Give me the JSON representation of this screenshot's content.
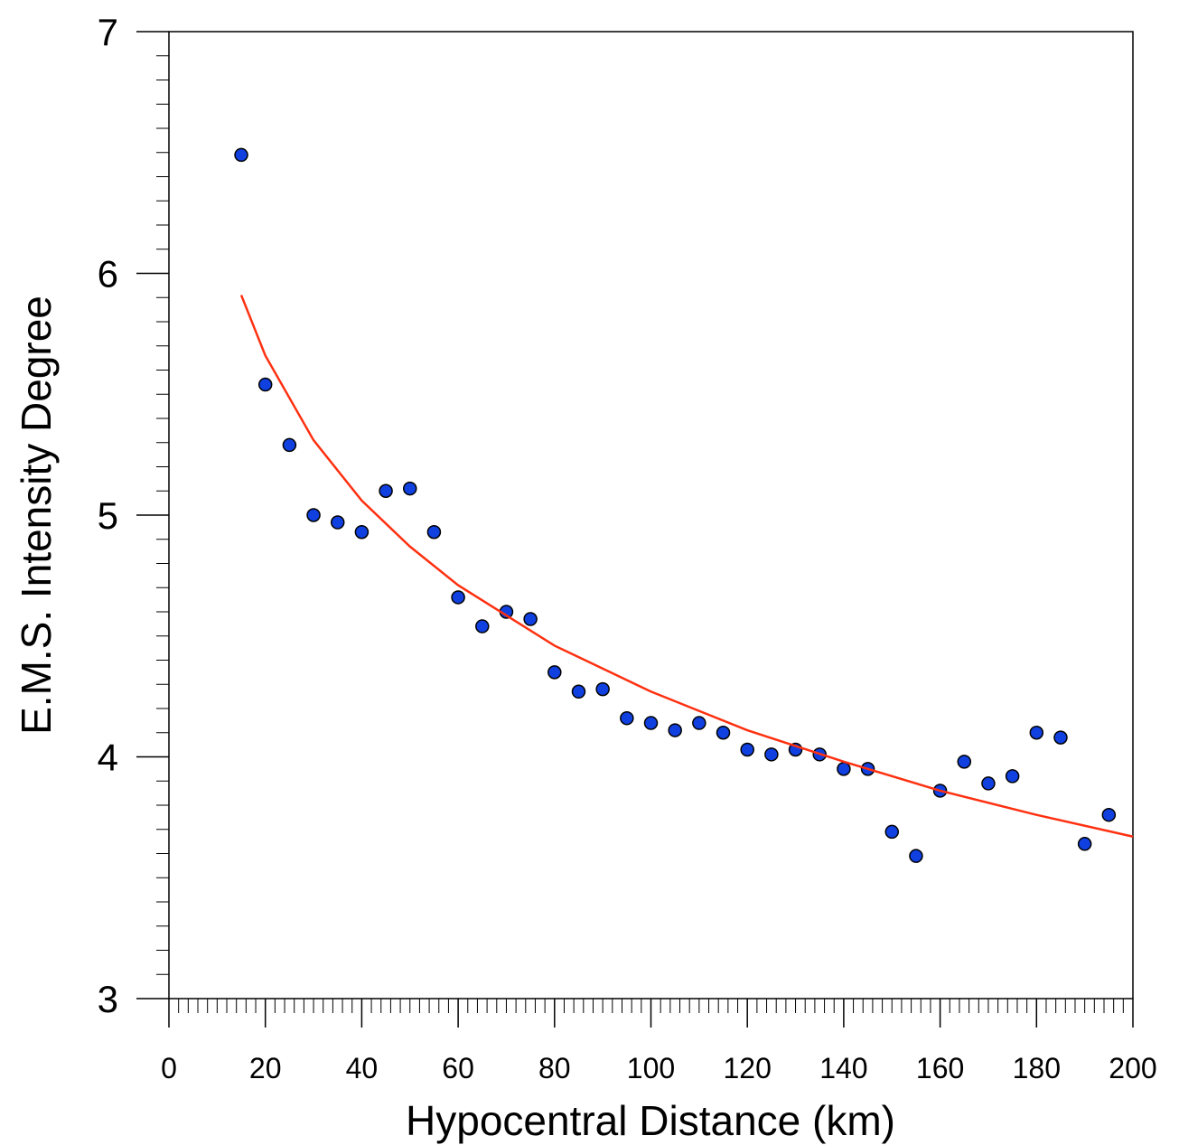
{
  "chart_data": {
    "type": "scatter",
    "x_label": "Hypocentral Distance (km)",
    "y_label": "E.M.S. Intensity Degree",
    "xlim": [
      0,
      200
    ],
    "xticks": [
      0,
      20,
      40,
      60,
      80,
      100,
      120,
      140,
      160,
      180,
      200
    ],
    "ylim": [
      3,
      7
    ],
    "yticks": [
      3,
      4,
      5,
      6,
      7
    ],
    "series": [
      {
        "type": "scatter",
        "color": "#1040e0",
        "x": [
          15,
          20,
          25,
          30,
          35,
          40,
          45,
          50,
          55,
          60,
          65,
          70,
          75,
          80,
          85,
          90,
          95,
          100,
          105,
          110,
          115,
          120,
          125,
          130,
          135,
          140,
          145,
          150,
          155,
          160,
          165,
          170,
          175,
          180,
          185,
          190,
          195
        ],
        "values": [
          6.49,
          5.54,
          5.29,
          5.0,
          4.97,
          4.93,
          5.1,
          5.11,
          4.93,
          4.66,
          4.54,
          4.6,
          4.57,
          4.35,
          4.27,
          4.28,
          4.16,
          4.14,
          4.11,
          4.14,
          4.1,
          4.03,
          4.01,
          4.03,
          4.01,
          3.95,
          3.95,
          3.69,
          3.59,
          3.86,
          3.98,
          3.89,
          3.92,
          4.1,
          4.08,
          3.64,
          3.76
        ]
      },
      {
        "type": "line",
        "color": "#ff3010",
        "x": [
          15,
          20,
          30,
          40,
          50,
          60,
          80,
          100,
          120,
          140,
          160,
          180,
          200
        ],
        "values": [
          5.91,
          5.66,
          5.31,
          5.06,
          4.87,
          4.71,
          4.46,
          4.27,
          4.11,
          3.98,
          3.86,
          3.76,
          3.67
        ]
      }
    ]
  }
}
